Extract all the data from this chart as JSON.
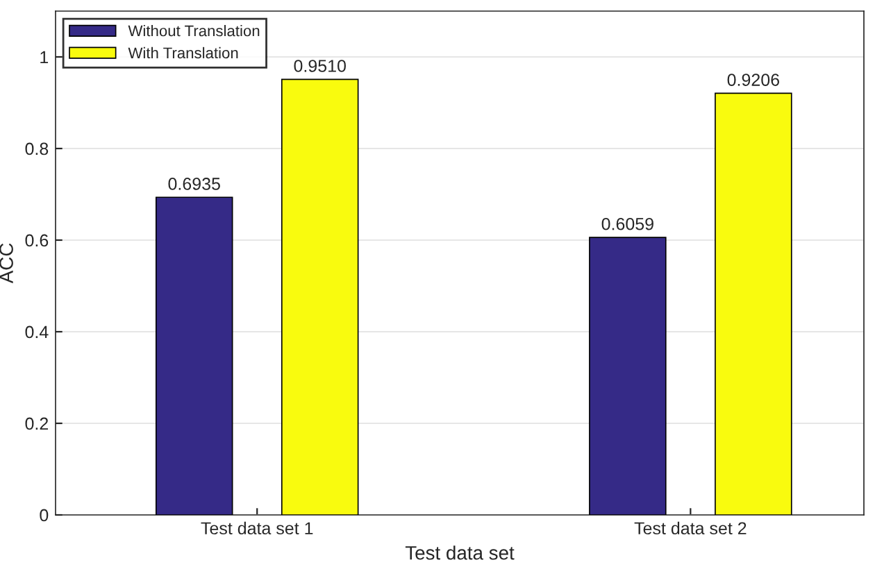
{
  "chart_data": {
    "type": "bar",
    "xlabel": "Test data set",
    "ylabel": "ACC",
    "categories": [
      "Test data set 1",
      "Test data set 2"
    ],
    "series": [
      {
        "name": "Without Translation",
        "color": "#352a87",
        "values": [
          0.6935,
          0.6059
        ],
        "value_labels": [
          "0.6935",
          "0.6059"
        ]
      },
      {
        "name": "With Translation",
        "color": "#f9fb0e",
        "values": [
          0.951,
          0.9206
        ],
        "value_labels": [
          "0.9510",
          "0.9206"
        ]
      }
    ],
    "ylim": [
      0,
      1.1
    ],
    "yticks": [
      0,
      0.2,
      0.4,
      0.6,
      0.8,
      1
    ],
    "grid": "y",
    "legend": "top left"
  }
}
